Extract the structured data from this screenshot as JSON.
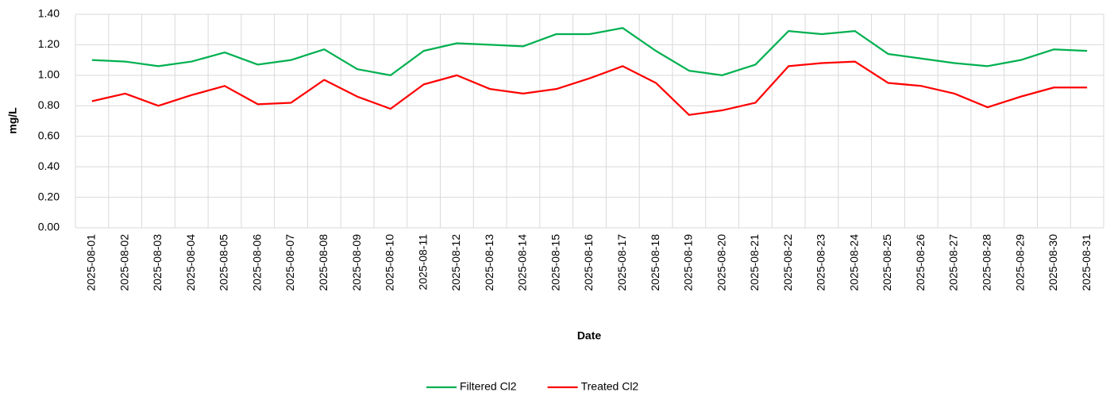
{
  "chart_data": {
    "type": "line",
    "x_label": "Date",
    "y_label": "mg/L",
    "categories": [
      "2025-08-01",
      "2025-08-02",
      "2025-08-03",
      "2025-08-04",
      "2025-08-05",
      "2025-08-06",
      "2025-08-07",
      "2025-08-08",
      "2025-08-09",
      "2025-08-10",
      "2025-08-11",
      "2025-08-12",
      "2025-08-13",
      "2025-08-14",
      "2025-08-15",
      "2025-08-16",
      "2025-08-17",
      "2025-08-18",
      "2025-08-19",
      "2025-08-20",
      "2025-08-21",
      "2025-08-22",
      "2025-08-23",
      "2025-08-24",
      "2025-08-25",
      "2025-08-26",
      "2025-08-27",
      "2025-08-28",
      "2025-08-29",
      "2025-08-30",
      "2025-08-31"
    ],
    "series": [
      {
        "name": "Filtered Cl2",
        "color": "#00b050",
        "values": [
          1.1,
          1.09,
          1.06,
          1.09,
          1.15,
          1.07,
          1.1,
          1.17,
          1.04,
          1.0,
          1.16,
          1.21,
          1.2,
          1.19,
          1.27,
          1.27,
          1.31,
          1.16,
          1.03,
          1.0,
          1.07,
          1.29,
          1.27,
          1.29,
          1.14,
          1.11,
          1.08,
          1.06,
          1.1,
          1.17,
          1.16
        ]
      },
      {
        "name": "Treated Cl2",
        "color": "#ff0000",
        "values": [
          0.83,
          0.88,
          0.8,
          0.87,
          0.93,
          0.81,
          0.82,
          0.97,
          0.86,
          0.78,
          0.94,
          1.0,
          0.91,
          0.88,
          0.91,
          0.98,
          1.06,
          0.95,
          0.74,
          0.77,
          0.82,
          1.06,
          1.08,
          1.09,
          0.95,
          0.93,
          0.88,
          0.79,
          0.86,
          0.92,
          0.92
        ]
      }
    ],
    "ylim": [
      0,
      1.4
    ],
    "yticks": [
      {
        "value": 0,
        "label": "0.00"
      },
      {
        "value": 0.2,
        "label": "0.20"
      },
      {
        "value": 0.4,
        "label": "0.40"
      },
      {
        "value": 0.6,
        "label": "0.60"
      },
      {
        "value": 0.8,
        "label": "0.80"
      },
      {
        "value": 1,
        "label": "1.00"
      },
      {
        "value": 1.2,
        "label": "1.20"
      },
      {
        "value": 1.4,
        "label": "1.40"
      }
    ],
    "grid": true,
    "legend": "bottom"
  }
}
